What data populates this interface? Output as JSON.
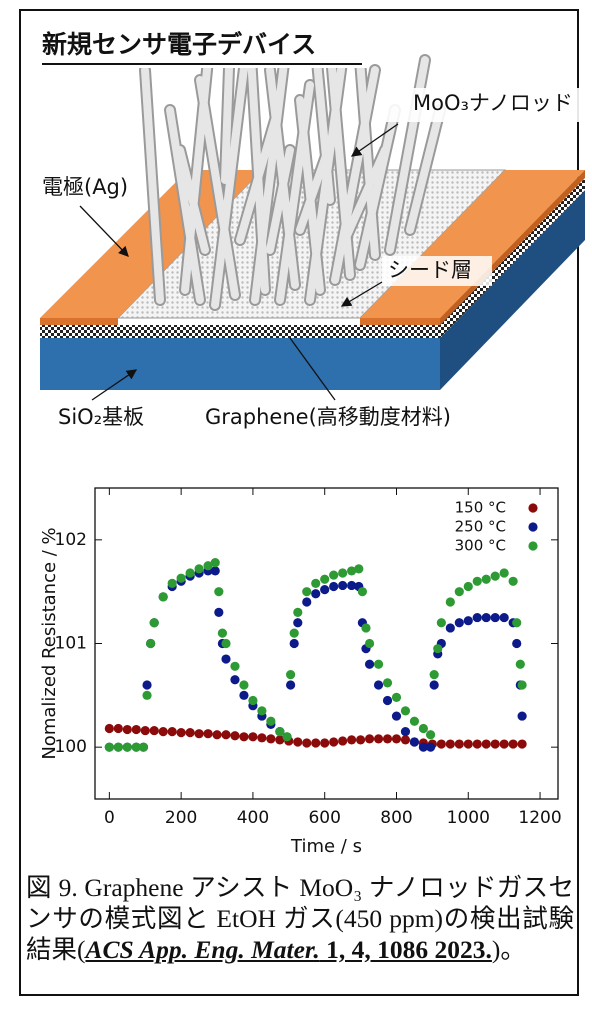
{
  "diagram": {
    "title": "新規センサ電子デバイス",
    "rods_label": "MoO₃ナノロッド",
    "electrode_label": "電極(Ag)",
    "seed_label": "シード層",
    "substrate_label": "SiO₂基板",
    "graphene_label": "Graphene(高移動度材料)"
  },
  "chart_data": {
    "type": "scatter",
    "xlabel": "Time / s",
    "ylabel": "Nomalized Resistance / %",
    "xlim": [
      -40,
      1250
    ],
    "ylim": [
      99.5,
      102.5
    ],
    "xticks": [
      0,
      200,
      400,
      600,
      800,
      1000,
      1200
    ],
    "yticks": [
      100,
      101,
      102
    ],
    "legend": "upper right",
    "series": [
      {
        "name": "150 °C",
        "color": "#8b0a0a",
        "x": [
          0,
          25,
          50,
          75,
          100,
          125,
          150,
          175,
          200,
          225,
          250,
          275,
          300,
          325,
          350,
          375,
          400,
          425,
          450,
          475,
          500,
          525,
          550,
          575,
          600,
          625,
          650,
          675,
          700,
          725,
          750,
          775,
          800,
          825,
          850,
          875,
          900,
          925,
          950,
          975,
          1000,
          1025,
          1050,
          1075,
          1100,
          1125,
          1150
        ],
        "values": [
          100.18,
          100.18,
          100.17,
          100.17,
          100.16,
          100.16,
          100.15,
          100.15,
          100.14,
          100.14,
          100.13,
          100.13,
          100.12,
          100.12,
          100.11,
          100.1,
          100.1,
          100.09,
          100.08,
          100.07,
          100.06,
          100.05,
          100.04,
          100.04,
          100.04,
          100.05,
          100.06,
          100.07,
          100.07,
          100.08,
          100.08,
          100.08,
          100.08,
          100.07,
          100.05,
          100.04,
          100.03,
          100.03,
          100.03,
          100.03,
          100.03,
          100.03,
          100.03,
          100.03,
          100.03,
          100.03,
          100.03
        ]
      },
      {
        "name": "250 °C",
        "color": "#0c1a8a",
        "x": [
          0,
          25,
          50,
          75,
          95,
          105,
          115,
          125,
          150,
          175,
          200,
          225,
          250,
          275,
          295,
          305,
          315,
          325,
          350,
          375,
          400,
          425,
          450,
          475,
          495,
          505,
          515,
          525,
          550,
          575,
          600,
          625,
          650,
          675,
          695,
          705,
          715,
          725,
          750,
          775,
          800,
          825,
          850,
          875,
          895,
          905,
          915,
          925,
          950,
          975,
          1000,
          1025,
          1050,
          1075,
          1100,
          1125,
          1135,
          1145,
          1150
        ],
        "values": [
          100,
          100,
          100,
          100,
          100,
          100.6,
          101.0,
          101.2,
          101.45,
          101.55,
          101.6,
          101.65,
          101.68,
          101.7,
          101.7,
          101.3,
          101.0,
          100.85,
          100.65,
          100.5,
          100.4,
          100.3,
          100.22,
          100.15,
          100.1,
          100.6,
          101.0,
          101.2,
          101.4,
          101.48,
          101.52,
          101.55,
          101.56,
          101.56,
          101.55,
          101.2,
          100.95,
          100.8,
          100.6,
          100.45,
          100.3,
          100.15,
          100.05,
          100,
          100,
          100.6,
          100.9,
          101.0,
          101.15,
          101.2,
          101.22,
          101.25,
          101.25,
          101.25,
          101.25,
          101.2,
          101.0,
          100.6,
          100.3
        ]
      },
      {
        "name": "300 °C",
        "color": "#2e9a34",
        "x": [
          0,
          25,
          50,
          75,
          95,
          105,
          115,
          125,
          150,
          175,
          200,
          225,
          250,
          275,
          295,
          305,
          315,
          325,
          350,
          375,
          400,
          425,
          450,
          475,
          495,
          505,
          515,
          525,
          550,
          575,
          600,
          625,
          650,
          675,
          695,
          705,
          715,
          725,
          750,
          775,
          800,
          825,
          850,
          875,
          895,
          905,
          915,
          925,
          950,
          975,
          1000,
          1025,
          1050,
          1075,
          1100,
          1125,
          1135,
          1145,
          1150
        ],
        "values": [
          100,
          100,
          100,
          100,
          100,
          100.5,
          101.0,
          101.2,
          101.45,
          101.58,
          101.63,
          101.68,
          101.72,
          101.75,
          101.78,
          101.5,
          101.1,
          101.0,
          100.78,
          100.6,
          100.45,
          100.35,
          100.25,
          100.15,
          100.1,
          100.7,
          101.1,
          101.3,
          101.5,
          101.58,
          101.62,
          101.66,
          101.68,
          101.7,
          101.72,
          101.5,
          101.15,
          101.0,
          100.8,
          100.62,
          100.48,
          100.35,
          100.25,
          100.18,
          100.12,
          100.7,
          100.95,
          101.2,
          101.4,
          101.5,
          101.55,
          101.6,
          101.62,
          101.65,
          101.68,
          101.6,
          101.2,
          100.8,
          100.6
        ]
      }
    ]
  },
  "caption": {
    "text": "図 9. Graphene アシスト MoO₃ ナノロッドガスセンサの模式図と EtOH ガス(450 ppm)の検出試験結果(",
    "journal": "ACS App. Eng. Mater.",
    "reference": " 1, 4, 1086 2023.",
    "end": ")。"
  }
}
